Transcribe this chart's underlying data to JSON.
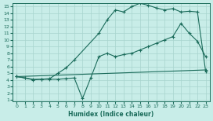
{
  "xlabel": "Humidex (Indice chaleur)",
  "bg_color": "#c8ede8",
  "grid_color": "#a8d4ce",
  "line_color": "#1a6b5a",
  "xlim_min": -0.5,
  "xlim_max": 23.5,
  "ylim_min": 0.8,
  "ylim_max": 15.5,
  "xticks": [
    0,
    1,
    2,
    3,
    4,
    5,
    6,
    7,
    8,
    9,
    10,
    11,
    12,
    13,
    14,
    15,
    16,
    17,
    18,
    19,
    20,
    21,
    22,
    23
  ],
  "yticks": [
    1,
    2,
    3,
    4,
    5,
    6,
    7,
    8,
    9,
    10,
    11,
    12,
    13,
    14,
    15
  ],
  "line1_x": [
    0,
    1,
    2,
    3,
    4,
    5,
    6,
    7,
    8,
    9,
    10,
    11,
    12,
    13,
    14,
    15,
    16,
    17,
    18,
    19,
    20,
    21,
    22,
    23
  ],
  "line1_y": [
    4.5,
    4.3,
    4.0,
    4.1,
    4.1,
    4.1,
    4.2,
    4.3,
    1.2,
    4.3,
    7.5,
    8.0,
    7.5,
    7.8,
    8.0,
    8.5,
    9.0,
    9.5,
    10.0,
    10.5,
    12.5,
    11.0,
    9.8,
    7.5
  ],
  "line2_x": [
    0,
    1,
    2,
    3,
    4,
    5,
    6,
    7,
    10,
    11,
    12,
    13,
    14,
    15,
    16,
    17,
    18,
    19,
    20,
    21,
    22,
    23
  ],
  "line2_y": [
    4.5,
    4.3,
    4.1,
    4.1,
    4.2,
    5.0,
    5.8,
    7.0,
    11.0,
    13.0,
    14.5,
    14.2,
    15.0,
    15.5,
    15.2,
    14.8,
    14.5,
    14.7,
    14.2,
    14.3,
    14.2,
    5.3
  ],
  "line3_x": [
    0,
    23
  ],
  "line3_y": [
    4.5,
    5.5
  ]
}
